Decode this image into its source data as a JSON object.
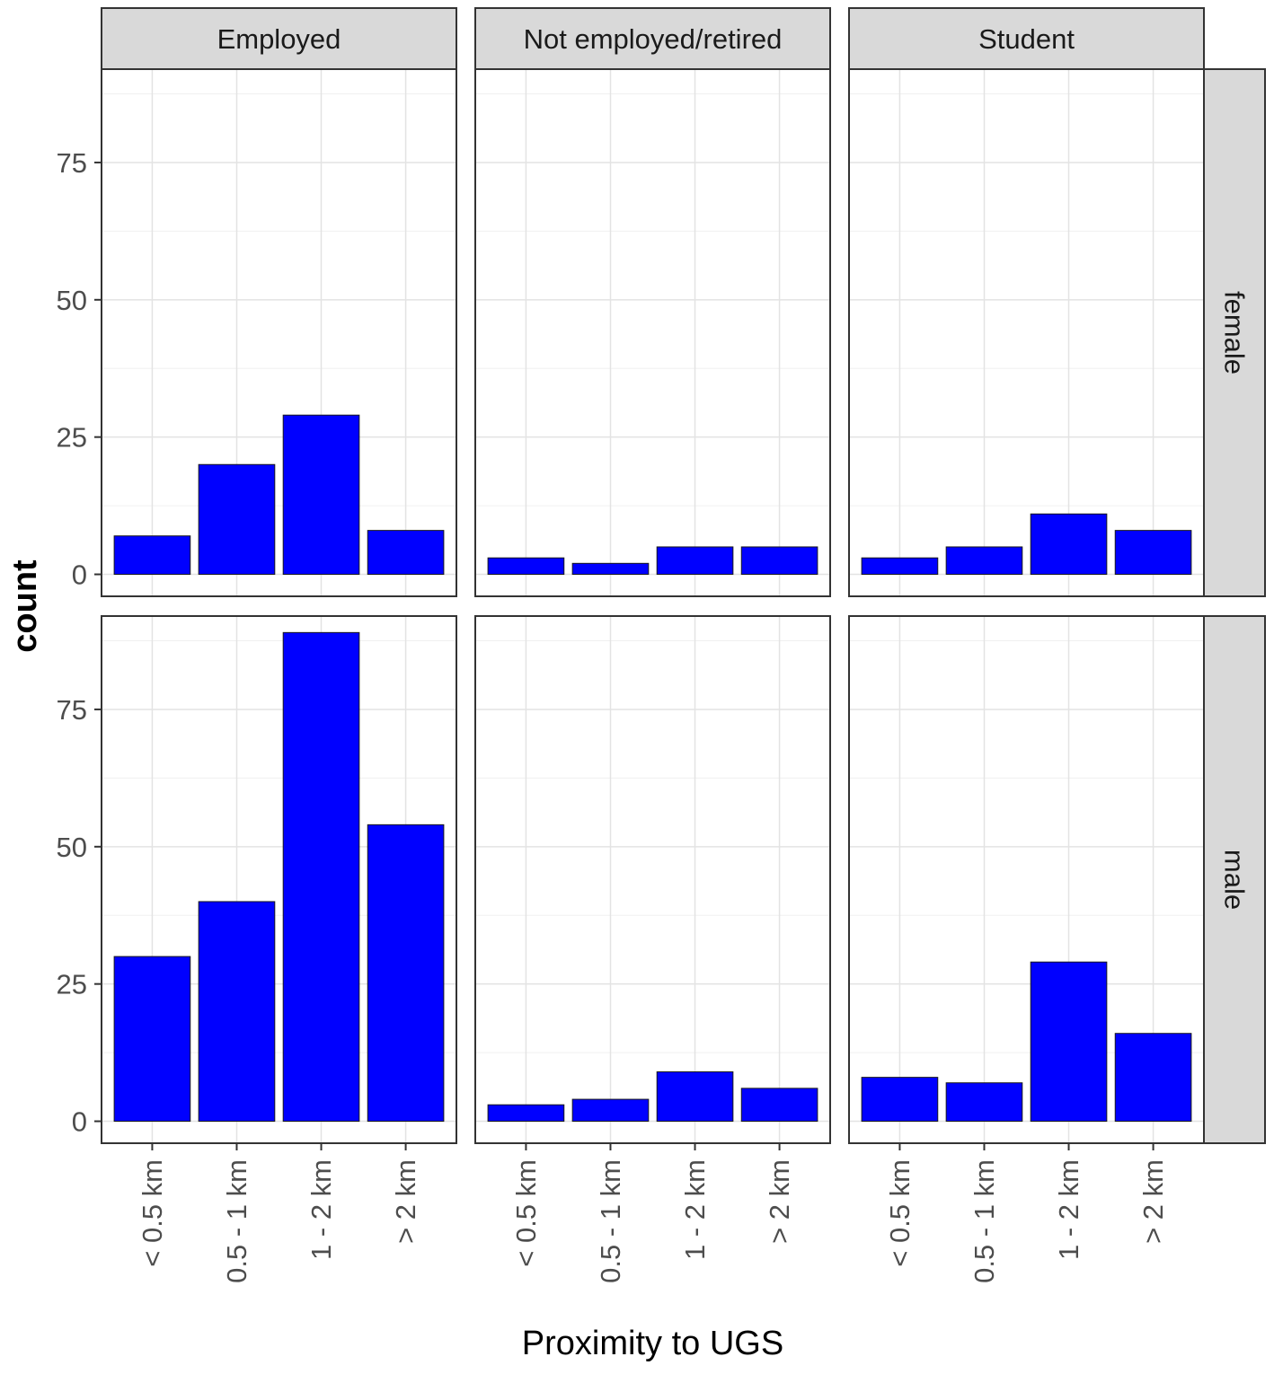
{
  "chart_data": {
    "type": "bar",
    "xlabel": "Proximity to UGS",
    "ylabel": "count",
    "categories": [
      "< 0.5 km",
      "0.5 - 1 km",
      "1 - 2 km",
      "> 2 km"
    ],
    "facet_columns": [
      "Employed",
      "Not employed/retired",
      "Student"
    ],
    "facet_rows": [
      "female",
      "male"
    ],
    "y_ticks": [
      0,
      25,
      50,
      75
    ],
    "ylim": [
      -4,
      92
    ],
    "grid": true,
    "bar_color": "#0000ff",
    "panels": [
      {
        "column": "Employed",
        "row": "female",
        "values": [
          7,
          20,
          29,
          8
        ]
      },
      {
        "column": "Not employed/retired",
        "row": "female",
        "values": [
          3,
          2,
          5,
          5
        ]
      },
      {
        "column": "Student",
        "row": "female",
        "values": [
          3,
          5,
          11,
          8
        ]
      },
      {
        "column": "Employed",
        "row": "male",
        "values": [
          30,
          40,
          89,
          54
        ]
      },
      {
        "column": "Not employed/retired",
        "row": "male",
        "values": [
          3,
          4,
          9,
          6
        ]
      },
      {
        "column": "Student",
        "row": "male",
        "values": [
          8,
          7,
          29,
          16
        ]
      }
    ]
  }
}
